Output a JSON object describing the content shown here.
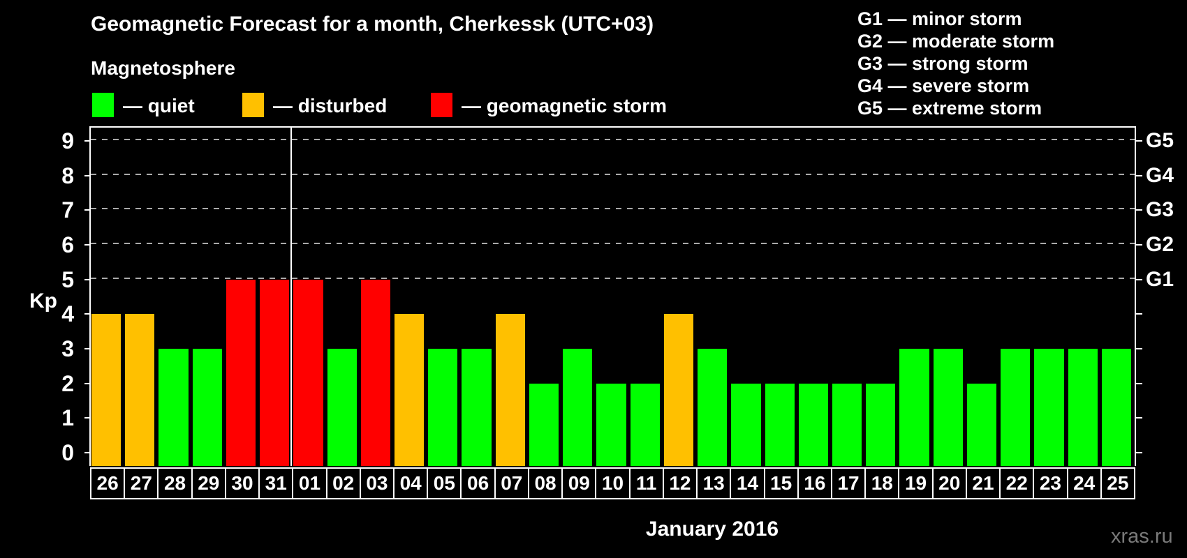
{
  "header": {
    "title": "Geomagnetic Forecast for a month, Cherkessk (UTC+03)",
    "subtitle": "Magnetosphere"
  },
  "legend": {
    "items": [
      {
        "name": "quiet",
        "label": "— quiet",
        "color": "#00FF00"
      },
      {
        "name": "disturbed",
        "label": "— disturbed",
        "color": "#FFC000"
      },
      {
        "name": "storm",
        "label": "— geomagnetic storm",
        "color": "#FF0000"
      }
    ]
  },
  "g_legend": {
    "items": [
      "G1 — minor storm",
      "G2 — moderate storm",
      "G3 — strong storm",
      "G4 — severe storm",
      "G5 — extreme storm"
    ]
  },
  "chart_data": {
    "type": "bar",
    "title": "Geomagnetic Forecast for a month, Cherkessk (UTC+03)",
    "ylabel": "Kp",
    "xlabel": "January 2016",
    "ylim": [
      0,
      9
    ],
    "yticks": [
      0,
      1,
      2,
      3,
      4,
      5,
      6,
      7,
      8,
      9
    ],
    "gridlines_at": [
      5,
      6,
      7,
      8,
      9
    ],
    "grid": "dashed horizontal at G-storm levels only",
    "legend_position": "top",
    "right_axis_labels": [
      {
        "kp": 5,
        "label": "G1"
      },
      {
        "kp": 6,
        "label": "G2"
      },
      {
        "kp": 7,
        "label": "G3"
      },
      {
        "kp": 8,
        "label": "G4"
      },
      {
        "kp": 9,
        "label": "G5"
      }
    ],
    "palette": {
      "quiet": "#00FF00",
      "disturbed": "#FFC000",
      "storm": "#FF0000"
    },
    "separator_after_index": 5,
    "categories": [
      "26",
      "27",
      "28",
      "29",
      "30",
      "31",
      "01",
      "02",
      "03",
      "04",
      "05",
      "06",
      "07",
      "08",
      "09",
      "10",
      "11",
      "12",
      "13",
      "14",
      "15",
      "16",
      "17",
      "18",
      "19",
      "20",
      "21",
      "22",
      "23",
      "24",
      "25"
    ],
    "values": [
      4,
      4,
      3,
      3,
      5,
      5,
      5,
      3,
      5,
      4,
      3,
      3,
      4,
      2,
      3,
      2,
      2,
      4,
      3,
      2,
      2,
      2,
      2,
      2,
      3,
      3,
      2,
      3,
      3,
      3,
      3
    ],
    "bars": [
      {
        "day": "26",
        "kp": 4,
        "status": "disturbed"
      },
      {
        "day": "27",
        "kp": 4,
        "status": "disturbed"
      },
      {
        "day": "28",
        "kp": 3,
        "status": "quiet"
      },
      {
        "day": "29",
        "kp": 3,
        "status": "quiet"
      },
      {
        "day": "30",
        "kp": 5,
        "status": "storm"
      },
      {
        "day": "31",
        "kp": 5,
        "status": "storm"
      },
      {
        "day": "01",
        "kp": 5,
        "status": "storm"
      },
      {
        "day": "02",
        "kp": 3,
        "status": "quiet"
      },
      {
        "day": "03",
        "kp": 5,
        "status": "storm"
      },
      {
        "day": "04",
        "kp": 4,
        "status": "disturbed"
      },
      {
        "day": "05",
        "kp": 3,
        "status": "quiet"
      },
      {
        "day": "06",
        "kp": 3,
        "status": "quiet"
      },
      {
        "day": "07",
        "kp": 4,
        "status": "disturbed"
      },
      {
        "day": "08",
        "kp": 2,
        "status": "quiet"
      },
      {
        "day": "09",
        "kp": 3,
        "status": "quiet"
      },
      {
        "day": "10",
        "kp": 2,
        "status": "quiet"
      },
      {
        "day": "11",
        "kp": 2,
        "status": "quiet"
      },
      {
        "day": "12",
        "kp": 4,
        "status": "disturbed"
      },
      {
        "day": "13",
        "kp": 3,
        "status": "quiet"
      },
      {
        "day": "14",
        "kp": 2,
        "status": "quiet"
      },
      {
        "day": "15",
        "kp": 2,
        "status": "quiet"
      },
      {
        "day": "16",
        "kp": 2,
        "status": "quiet"
      },
      {
        "day": "17",
        "kp": 2,
        "status": "quiet"
      },
      {
        "day": "18",
        "kp": 2,
        "status": "quiet"
      },
      {
        "day": "19",
        "kp": 3,
        "status": "quiet"
      },
      {
        "day": "20",
        "kp": 3,
        "status": "quiet"
      },
      {
        "day": "21",
        "kp": 2,
        "status": "quiet"
      },
      {
        "day": "22",
        "kp": 3,
        "status": "quiet"
      },
      {
        "day": "23",
        "kp": 3,
        "status": "quiet"
      },
      {
        "day": "24",
        "kp": 3,
        "status": "quiet"
      },
      {
        "day": "25",
        "kp": 3,
        "status": "quiet"
      }
    ]
  },
  "footer": {
    "xaxis_title": "January 2016",
    "watermark": "xras.ru"
  }
}
